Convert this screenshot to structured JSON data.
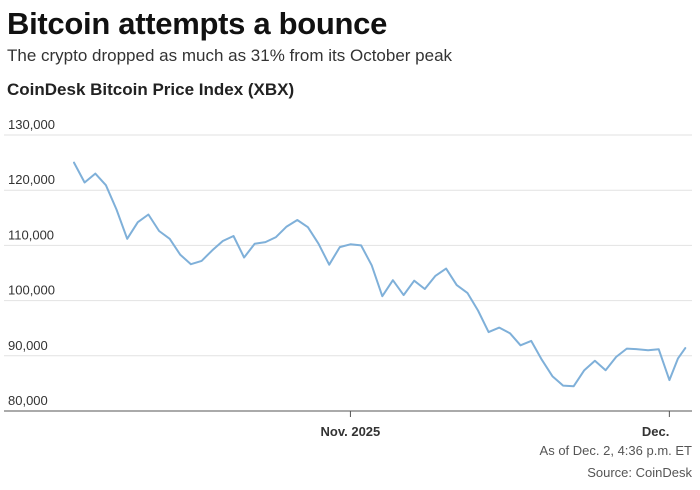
{
  "header": {
    "headline": "Bitcoin attempts a bounce",
    "subhead": "The crypto dropped as much as 31% from its October peak",
    "chart_title": "CoinDesk Bitcoin Price Index (XBX)"
  },
  "footer": {
    "as_of": "As of Dec. 2, 4:36 p.m. ET",
    "source": "Source: CoinDesk"
  },
  "colors": {
    "line": "#7fb0d9",
    "grid": "#e2e2e2",
    "axis": "#555555"
  },
  "chart_data": {
    "type": "line",
    "title": "CoinDesk Bitcoin Price Index (XBX)",
    "xlabel": "",
    "ylabel": "",
    "ylim": [
      80000,
      130000
    ],
    "yticks": [
      130000,
      120000,
      110000,
      100000,
      90000,
      80000
    ],
    "ytick_labels": [
      "130,000",
      "120,000",
      "110,000",
      "100,000",
      "90,000",
      "80,000"
    ],
    "x_domain": [
      "Oct. 6, 2025",
      "Dec. 2, 2025"
    ],
    "x_domain_days": [
      0,
      57
    ],
    "xticks": [
      {
        "label": "Nov. 2025",
        "day": 26
      },
      {
        "label": "Dec.",
        "day": 56
      }
    ],
    "series": [
      {
        "name": "XBX",
        "x_days": [
          0,
          1,
          2,
          3,
          4,
          5,
          6,
          7,
          8,
          9,
          10,
          11,
          12,
          13,
          14,
          15,
          16,
          17,
          18,
          19,
          20,
          21,
          22,
          23,
          24,
          25,
          26,
          27,
          28,
          29,
          30,
          31,
          32,
          33,
          34,
          35,
          36,
          37,
          38,
          39,
          40,
          41,
          42,
          43,
          44,
          45,
          46,
          47,
          48,
          49,
          50,
          51,
          52,
          53,
          54,
          55,
          56,
          56.8,
          57.5
        ],
        "values": [
          125000,
          121400,
          123000,
          120900,
          116500,
          111200,
          114200,
          115600,
          112600,
          111200,
          108300,
          106600,
          107200,
          109100,
          110800,
          111700,
          107800,
          110300,
          110600,
          111500,
          113400,
          114600,
          113300,
          110300,
          106500,
          109700,
          110200,
          110000,
          106400,
          100800,
          103700,
          101000,
          103600,
          102100,
          104500,
          105800,
          102800,
          101400,
          98200,
          94300,
          95100,
          94100,
          91900,
          92700,
          89300,
          86300,
          84600,
          84500,
          87400,
          89100,
          87400,
          89800,
          91300,
          91200,
          91000,
          91200,
          85600,
          89500,
          91400
        ]
      }
    ]
  }
}
